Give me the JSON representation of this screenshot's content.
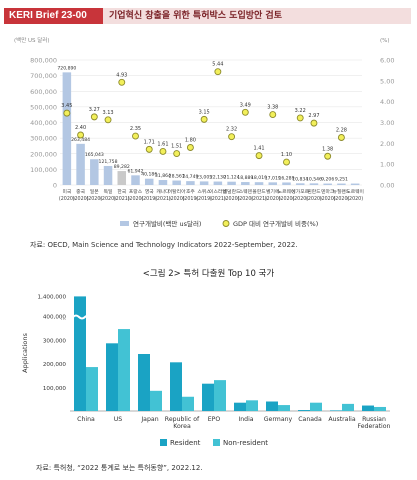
{
  "header": {
    "badge": "KERI Brief 23-00",
    "title": "기업혁신 창출을 위한 특허박스 도입방안 검토"
  },
  "chart_data": [
    {
      "type": "bar+scatter",
      "left_axis_label": "(백만 US 달러)",
      "right_axis_label": "(%)",
      "left_ticks": [
        "0",
        "100,000",
        "200,000",
        "300,000",
        "400,000",
        "500,000",
        "600,000",
        "700,000",
        "800,000"
      ],
      "right_ticks": [
        "0.00",
        "1.00",
        "2.00",
        "3.00",
        "4.00",
        "5.00",
        "6.00"
      ],
      "ylim_left": [
        0,
        800000
      ],
      "ylim_right": [
        0,
        6
      ],
      "categories": [
        {
          "name": "미국",
          "year": "(2020)"
        },
        {
          "name": "중국",
          "year": "(2020)"
        },
        {
          "name": "일본",
          "year": "(2020)"
        },
        {
          "name": "독일",
          "year": "(2020)"
        },
        {
          "name": "한국",
          "year": "(2021)"
        },
        {
          "name": "프랑스",
          "year": "(2020)"
        },
        {
          "name": "영국",
          "year": "(2019)"
        },
        {
          "name": "캐나다",
          "year": "(2021)"
        },
        {
          "name": "이탈리아",
          "year": "(2020)"
        },
        {
          "name": "호주",
          "year": "(2019)"
        },
        {
          "name": "스위스",
          "year": "(2019)"
        },
        {
          "name": "이스라엘",
          "year": "(2021)"
        },
        {
          "name": "네덜란드",
          "year": "(2020)"
        },
        {
          "name": "스웨덴",
          "year": "(2020)"
        },
        {
          "name": "폴란드",
          "year": "(2021)"
        },
        {
          "name": "벨기에",
          "year": "(2020)"
        },
        {
          "name": "노르웨이",
          "year": "(2020)"
        },
        {
          "name": "싱가포르",
          "year": "(2020)"
        },
        {
          "name": "핀란드",
          "year": "(2020)"
        },
        {
          "name": "덴마크",
          "year": "(2020)"
        },
        {
          "name": "뉴질랜드",
          "year": "(2020)"
        },
        {
          "name": "노르웨이",
          "year": "(2020)"
        }
      ],
      "bar_values": [
        720890,
        263484,
        165043,
        121758,
        89282,
        61942,
        40186,
        31864,
        28567,
        24749,
        23005,
        22130,
        21124,
        18889,
        18019,
        17019,
        16289,
        10834,
        10546,
        9206,
        9251,
        9251
      ],
      "bar_labels": [
        "720,890",
        "263,484",
        "165,043",
        "121,758",
        "89,282",
        "61,942",
        "40,186",
        "31,864",
        "28,567",
        "24,749",
        "23,005",
        "22,130",
        "21,124",
        "18,889",
        "18,019",
        "17,019",
        "16,289",
        "10,834",
        "10,546",
        "9,206",
        "9,251",
        ""
      ],
      "dot_values": [
        3.45,
        2.4,
        3.27,
        3.13,
        4.93,
        2.35,
        1.71,
        1.61,
        1.51,
        1.8,
        3.15,
        5.44,
        2.32,
        3.49,
        1.41,
        3.38,
        1.1,
        3.22,
        2.97,
        1.38,
        2.28,
        null
      ],
      "dot_labels": [
        "3.45",
        "2.40",
        "3.27",
        "3.13",
        "4.93",
        "2.35",
        "1.71",
        "1.61",
        "1.51",
        "1.80",
        "3.15",
        "5.44",
        "2.32",
        "3.49",
        "1.41",
        "3.38",
        "1.10",
        "3.22",
        "2.97",
        "1.38",
        "2.28",
        ""
      ],
      "legend": {
        "bar": "연구개발비(백만 us달러)",
        "dot": "GDP 대비 연구개발비 비중(%)"
      },
      "colors": {
        "bar": "#b3c7e3",
        "highlight_bar": "#c9c9c9",
        "dot_fill": "#f2ef5a",
        "dot_stroke": "#8d8b2c",
        "grid": "#e2e2e2"
      }
    },
    {
      "type": "bar",
      "title": "<그림 2> 특허 다출원 Top 10 국가",
      "ylabel": "Applications",
      "y_ticks": [
        "1,400,000",
        "...",
        "400,000",
        "300,000",
        "200,000",
        "100,000"
      ],
      "categories": [
        "China",
        "US",
        "Japan",
        "Republic of Korea",
        "EPO",
        "India",
        "Germany",
        "Canada",
        "Australia",
        "Russian Federation"
      ],
      "series": [
        {
          "name": "Resident",
          "values": [
            1350000,
            285000,
            240000,
            205000,
            115000,
            35000,
            40000,
            4000,
            2500,
            23000
          ],
          "color": "#1aa3c4"
        },
        {
          "name": "Non-resident",
          "values": [
            185000,
            345000,
            85000,
            60000,
            130000,
            45000,
            25000,
            35000,
            30000,
            17000
          ],
          "color": "#42c2d4"
        }
      ]
    }
  ],
  "sources": {
    "fig1": "자료: OECD, Main Science and Technology Indicators 2022-September, 2022.",
    "fig2": "자료: 특허청, “2022 통계로 보는 특허동향”, 2022.12."
  }
}
